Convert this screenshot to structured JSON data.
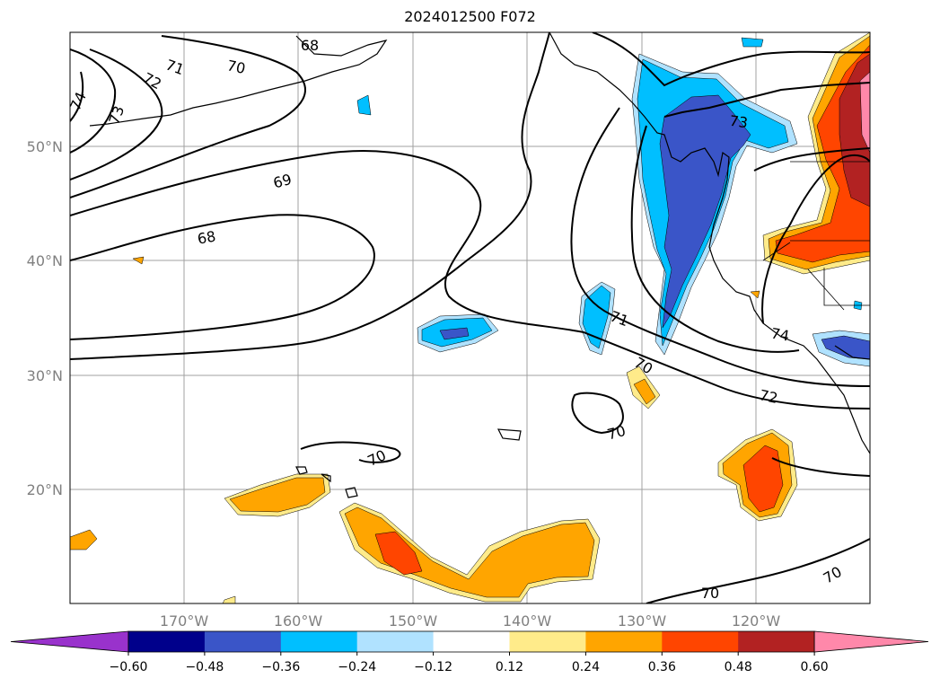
{
  "title": "2024012500 F072",
  "lat_labels": [
    "50°N",
    "40°N",
    "30°N",
    "20°N"
  ],
  "lon_labels": [
    "170°W",
    "160°W",
    "150°W",
    "140°W",
    "130°W",
    "120°W"
  ],
  "contour_labels": [
    "68",
    "71",
    "72",
    "70",
    "74",
    "73",
    "69",
    "68",
    "71",
    "70",
    "72",
    "74",
    "73",
    "70",
    "70",
    "70",
    "70"
  ],
  "colorbar": {
    "levels": [
      "−0.60",
      "−0.48",
      "−0.36",
      "−0.24",
      "−0.12",
      "0.12",
      "0.24",
      "0.36",
      "0.48",
      "0.60"
    ],
    "colors": [
      "#9932cc",
      "#00008b",
      "#3a55c8",
      "#00bfff",
      "#b0e2ff",
      "#ffffff",
      "#ffeb8a",
      "#ffa500",
      "#ff4500",
      "#b22222",
      "#ff88aa"
    ]
  }
}
